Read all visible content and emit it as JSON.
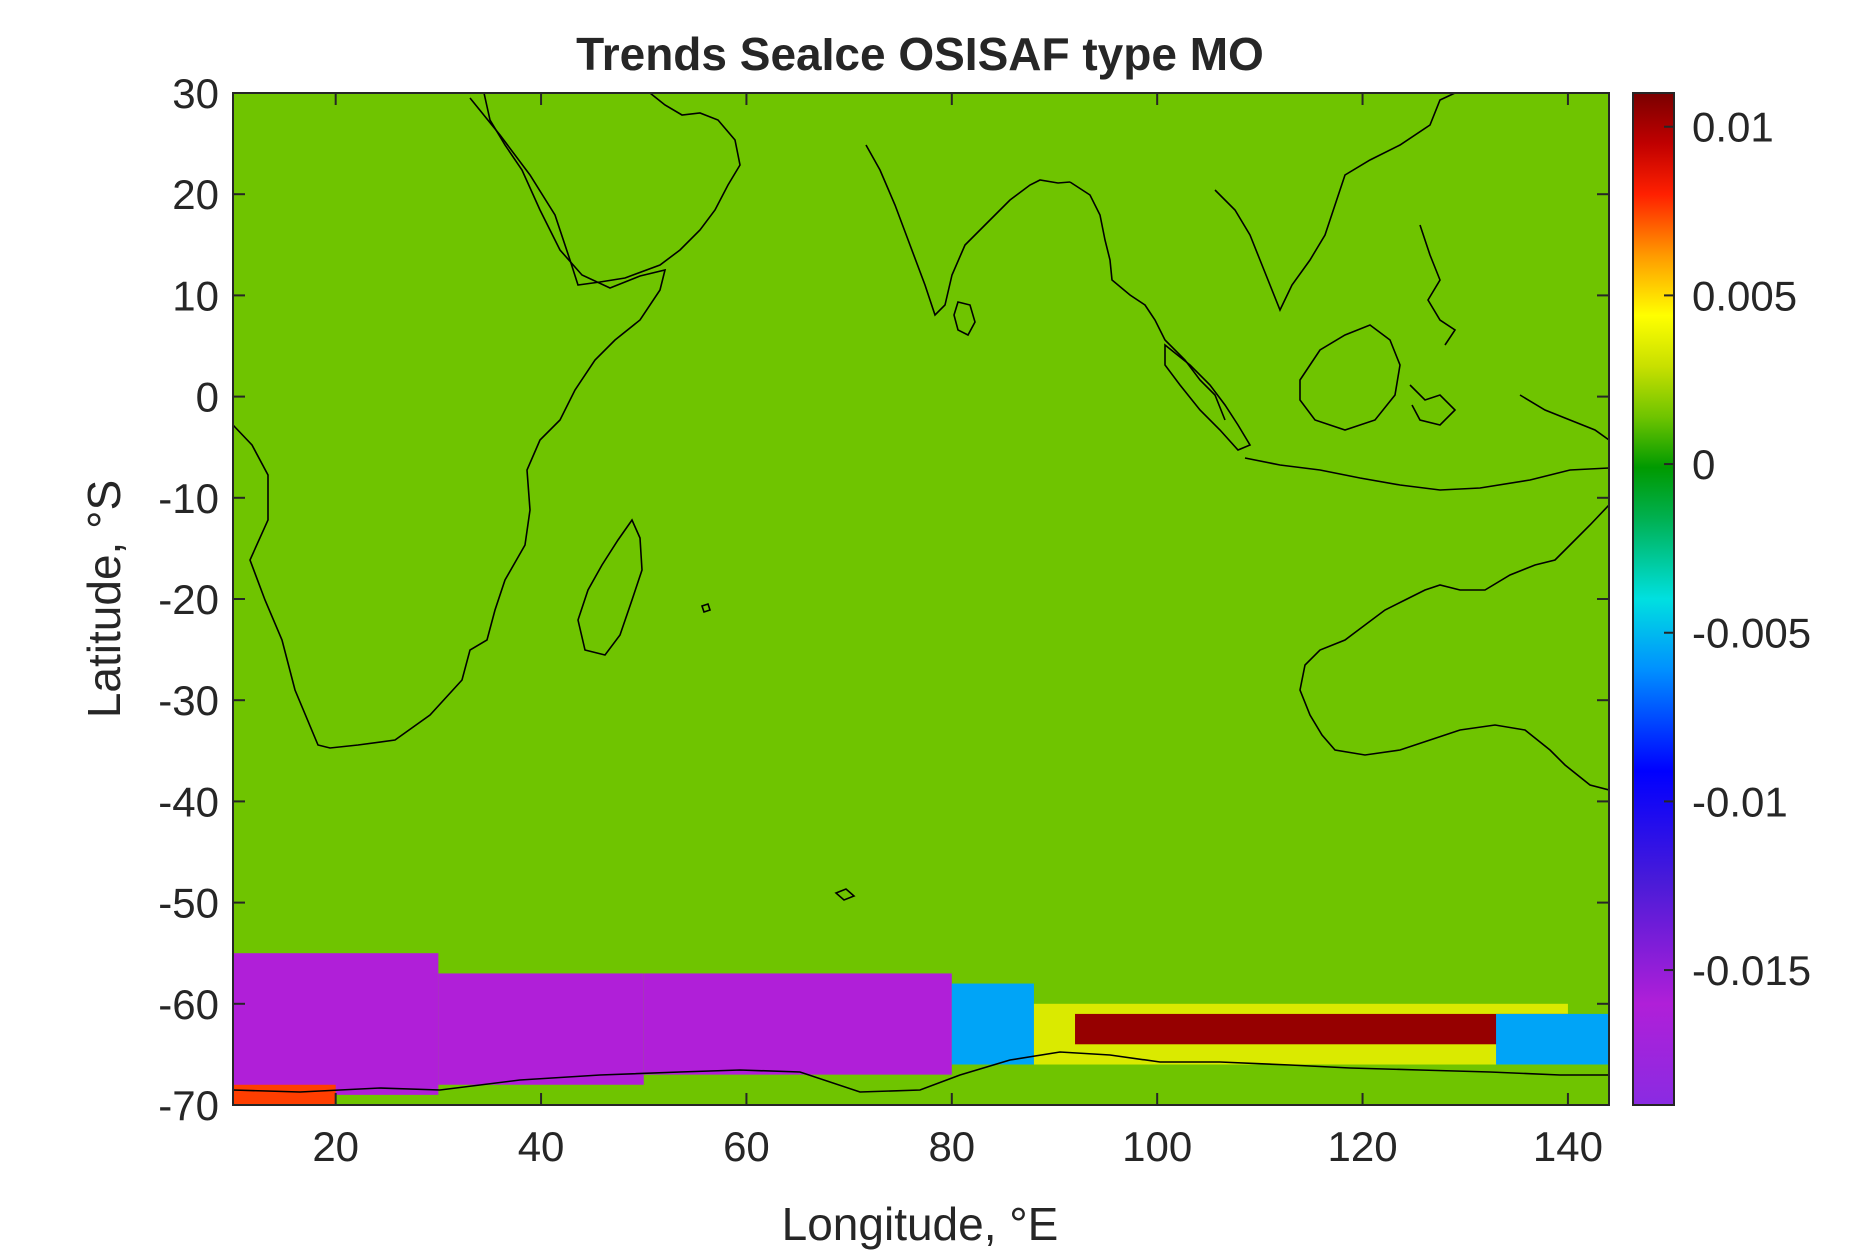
{
  "chart_data": {
    "type": "heatmap",
    "title": "Trends SeaIce OSISAF type MO",
    "xlabel": "Longitude, °E",
    "ylabel": "Latitude, °S",
    "xlim": [
      10,
      144
    ],
    "ylim": [
      -70,
      30
    ],
    "x_ticks": [
      "20",
      "40",
      "60",
      "80",
      "100",
      "120",
      "140"
    ],
    "x_tick_values": [
      20,
      40,
      60,
      80,
      100,
      120,
      140
    ],
    "y_ticks": [
      "30",
      "20",
      "10",
      "0",
      "-10",
      "-20",
      "-30",
      "-40",
      "-50",
      "-60",
      "-70"
    ],
    "y_tick_values": [
      30,
      20,
      10,
      0,
      -10,
      -20,
      -30,
      -40,
      -50,
      -60,
      -70
    ],
    "colorbar": {
      "clim": [
        -0.019,
        0.011
      ],
      "ticks": [
        "0.01",
        "0.005",
        "0",
        "-0.005",
        "-0.01",
        "-0.015"
      ],
      "tick_values": [
        0.01,
        0.005,
        0,
        -0.005,
        -0.01,
        -0.015
      ],
      "colormap": "jet-like (purple-blue-cyan-green-yellow-red-darkred)"
    },
    "background_value": 0,
    "background_color": "#6fc400",
    "coastlines": true,
    "grid": false,
    "trend_regions": [
      {
        "lon": [
          10,
          30
        ],
        "lat": [
          -69,
          -55
        ],
        "value": -0.016
      },
      {
        "lon": [
          30,
          50
        ],
        "lat": [
          -68,
          -57
        ],
        "value": -0.016
      },
      {
        "lon": [
          50,
          80
        ],
        "lat": [
          -67,
          -57
        ],
        "value": -0.016
      },
      {
        "lon": [
          80,
          88
        ],
        "lat": [
          -66,
          -58
        ],
        "value": -0.006
      },
      {
        "lon": [
          88,
          140
        ],
        "lat": [
          -66,
          -60
        ],
        "value": 0.002
      },
      {
        "lon": [
          92,
          140
        ],
        "lat": [
          -64,
          -61
        ],
        "value": 0.01
      },
      {
        "lon": [
          133,
          144
        ],
        "lat": [
          -66,
          -61
        ],
        "value": -0.006
      },
      {
        "lon": [
          10,
          20
        ],
        "lat": [
          -70,
          -68
        ],
        "value": 0.006
      }
    ]
  }
}
